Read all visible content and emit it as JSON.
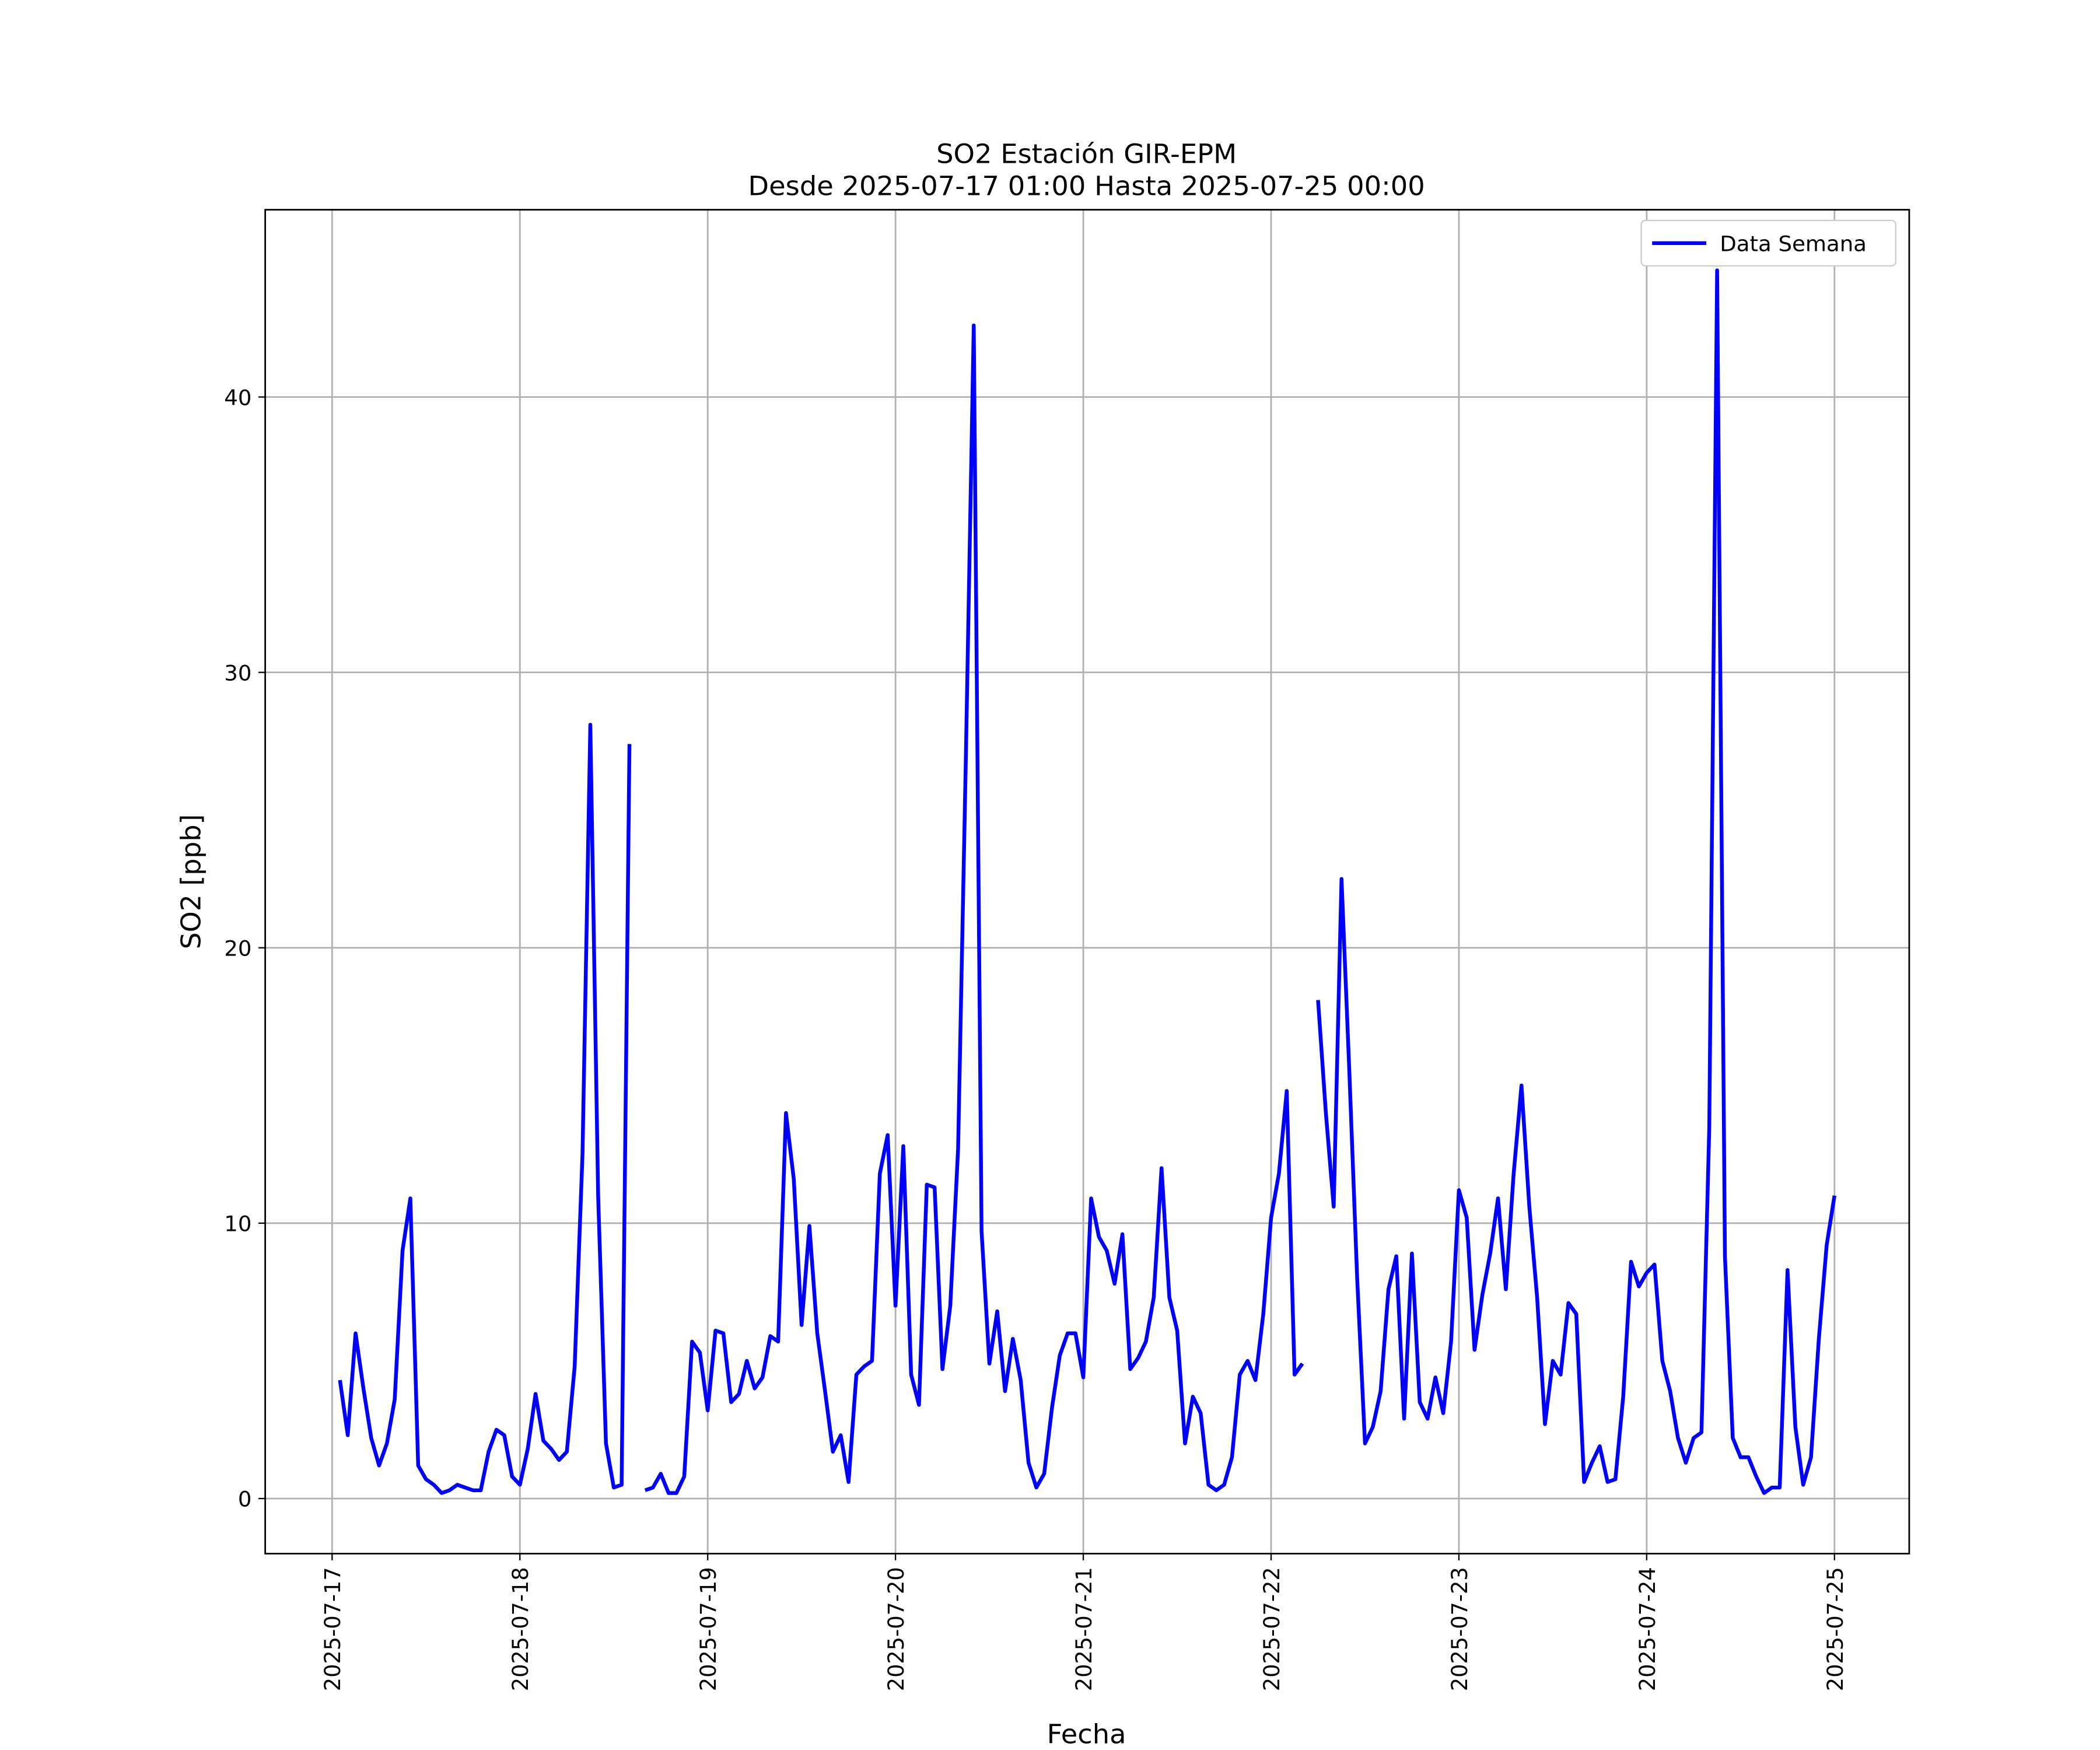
{
  "chart_data": {
    "type": "line",
    "title": "SO2 Estación GIR-EPM",
    "subtitle": "Desde 2025-07-17 01:00 Hasta 2025-07-25 00:00",
    "xlabel": "Fecha",
    "ylabel": "SO2 [ppb]",
    "legend": "upper right",
    "grid": true,
    "x": [
      "2025-07-17 01:00",
      "2025-07-17 02:00",
      "2025-07-17 03:00",
      "2025-07-17 04:00",
      "2025-07-17 05:00",
      "2025-07-17 06:00",
      "2025-07-17 07:00",
      "2025-07-17 08:00",
      "2025-07-17 09:00",
      "2025-07-17 10:00",
      "2025-07-17 11:00",
      "2025-07-17 12:00",
      "2025-07-17 13:00",
      "2025-07-17 14:00",
      "2025-07-17 15:00",
      "2025-07-17 16:00",
      "2025-07-17 17:00",
      "2025-07-17 18:00",
      "2025-07-17 19:00",
      "2025-07-17 20:00",
      "2025-07-17 21:00",
      "2025-07-17 22:00",
      "2025-07-17 23:00",
      "2025-07-18 00:00",
      "2025-07-18 01:00",
      "2025-07-18 02:00",
      "2025-07-18 03:00",
      "2025-07-18 04:00",
      "2025-07-18 05:00",
      "2025-07-18 06:00",
      "2025-07-18 07:00",
      "2025-07-18 08:00",
      "2025-07-18 09:00",
      "2025-07-18 10:00",
      "2025-07-18 11:00",
      "2025-07-18 12:00",
      "2025-07-18 13:00",
      "2025-07-18 14:00",
      "2025-07-18 15:00",
      "2025-07-18 16:00",
      "2025-07-18 17:00",
      "2025-07-18 18:00",
      "2025-07-18 19:00",
      "2025-07-18 20:00",
      "2025-07-18 21:00",
      "2025-07-18 22:00",
      "2025-07-18 23:00",
      "2025-07-19 00:00",
      "2025-07-19 01:00",
      "2025-07-19 02:00",
      "2025-07-19 03:00",
      "2025-07-19 04:00",
      "2025-07-19 05:00",
      "2025-07-19 06:00",
      "2025-07-19 07:00",
      "2025-07-19 08:00",
      "2025-07-19 09:00",
      "2025-07-19 10:00",
      "2025-07-19 11:00",
      "2025-07-19 12:00",
      "2025-07-19 13:00",
      "2025-07-19 14:00",
      "2025-07-19 15:00",
      "2025-07-19 16:00",
      "2025-07-19 17:00",
      "2025-07-19 18:00",
      "2025-07-19 19:00",
      "2025-07-19 20:00",
      "2025-07-19 21:00",
      "2025-07-19 22:00",
      "2025-07-19 23:00",
      "2025-07-20 00:00",
      "2025-07-20 01:00",
      "2025-07-20 02:00",
      "2025-07-20 03:00",
      "2025-07-20 04:00",
      "2025-07-20 05:00",
      "2025-07-20 06:00",
      "2025-07-20 07:00",
      "2025-07-20 08:00",
      "2025-07-20 09:00",
      "2025-07-20 10:00",
      "2025-07-20 11:00",
      "2025-07-20 12:00",
      "2025-07-20 13:00",
      "2025-07-20 14:00",
      "2025-07-20 15:00",
      "2025-07-20 16:00",
      "2025-07-20 17:00",
      "2025-07-20 18:00",
      "2025-07-20 19:00",
      "2025-07-20 20:00",
      "2025-07-20 21:00",
      "2025-07-20 22:00",
      "2025-07-20 23:00",
      "2025-07-21 00:00",
      "2025-07-21 01:00",
      "2025-07-21 02:00",
      "2025-07-21 03:00",
      "2025-07-21 04:00",
      "2025-07-21 05:00",
      "2025-07-21 06:00",
      "2025-07-21 07:00",
      "2025-07-21 08:00",
      "2025-07-21 09:00",
      "2025-07-21 10:00",
      "2025-07-21 11:00",
      "2025-07-21 12:00",
      "2025-07-21 13:00",
      "2025-07-21 14:00",
      "2025-07-21 15:00",
      "2025-07-21 16:00",
      "2025-07-21 17:00",
      "2025-07-21 18:00",
      "2025-07-21 19:00",
      "2025-07-21 20:00",
      "2025-07-21 21:00",
      "2025-07-21 22:00",
      "2025-07-21 23:00",
      "2025-07-22 00:00",
      "2025-07-22 01:00",
      "2025-07-22 02:00",
      "2025-07-22 03:00",
      "2025-07-22 04:00",
      "2025-07-22 05:00",
      "2025-07-22 06:00",
      "2025-07-22 07:00",
      "2025-07-22 08:00",
      "2025-07-22 09:00",
      "2025-07-22 10:00",
      "2025-07-22 11:00",
      "2025-07-22 12:00",
      "2025-07-22 13:00",
      "2025-07-22 14:00",
      "2025-07-22 15:00",
      "2025-07-22 16:00",
      "2025-07-22 17:00",
      "2025-07-22 18:00",
      "2025-07-22 19:00",
      "2025-07-22 20:00",
      "2025-07-22 21:00",
      "2025-07-22 22:00",
      "2025-07-22 23:00",
      "2025-07-23 00:00",
      "2025-07-23 01:00",
      "2025-07-23 02:00",
      "2025-07-23 03:00",
      "2025-07-23 04:00",
      "2025-07-23 05:00",
      "2025-07-23 06:00",
      "2025-07-23 07:00",
      "2025-07-23 08:00",
      "2025-07-23 09:00",
      "2025-07-23 10:00",
      "2025-07-23 11:00",
      "2025-07-23 12:00",
      "2025-07-23 13:00",
      "2025-07-23 14:00",
      "2025-07-23 15:00",
      "2025-07-23 16:00",
      "2025-07-23 17:00",
      "2025-07-23 18:00",
      "2025-07-23 19:00",
      "2025-07-23 20:00",
      "2025-07-23 21:00",
      "2025-07-23 22:00",
      "2025-07-23 23:00",
      "2025-07-24 00:00",
      "2025-07-24 01:00",
      "2025-07-24 02:00",
      "2025-07-24 03:00",
      "2025-07-24 04:00",
      "2025-07-24 05:00",
      "2025-07-24 06:00",
      "2025-07-24 07:00",
      "2025-07-24 08:00",
      "2025-07-24 09:00",
      "2025-07-24 10:00",
      "2025-07-24 11:00",
      "2025-07-24 12:00",
      "2025-07-24 13:00",
      "2025-07-24 14:00",
      "2025-07-24 15:00",
      "2025-07-24 16:00",
      "2025-07-24 17:00",
      "2025-07-24 18:00",
      "2025-07-24 19:00",
      "2025-07-24 20:00",
      "2025-07-24 21:00",
      "2025-07-24 22:00",
      "2025-07-24 23:00",
      "2025-07-25 00:00"
    ],
    "series": [
      {
        "name": "Data Semana",
        "color": "#0000ff",
        "values": [
          4.3,
          2.3,
          6.0,
          4.0,
          2.2,
          1.2,
          2.0,
          3.6,
          9.0,
          10.9,
          1.2,
          0.7,
          0.5,
          0.2,
          0.3,
          0.5,
          0.4,
          0.3,
          0.3,
          1.7,
          2.5,
          2.3,
          0.8,
          0.5,
          1.8,
          3.8,
          2.1,
          1.8,
          1.4,
          1.7,
          4.8,
          12.5,
          28.1,
          11.0,
          2.0,
          0.4,
          0.5,
          27.4,
          null,
          0.3,
          0.4,
          0.9,
          0.2,
          0.2,
          0.8,
          5.7,
          5.3,
          3.2,
          6.1,
          6.0,
          3.5,
          3.8,
          5.0,
          4.0,
          4.4,
          5.9,
          5.7,
          14.0,
          11.6,
          6.3,
          9.9,
          6.0,
          3.9,
          1.7,
          2.3,
          0.6,
          4.5,
          4.8,
          5.0,
          11.8,
          13.2,
          7.0,
          12.8,
          4.5,
          3.4,
          11.4,
          11.3,
          4.7,
          7.0,
          12.7,
          27.0,
          42.6,
          9.7,
          4.9,
          6.8,
          3.9,
          5.8,
          4.3,
          1.3,
          0.4,
          0.9,
          3.3,
          5.2,
          6.0,
          6.0,
          4.4,
          10.9,
          9.5,
          9.0,
          7.8,
          9.6,
          4.7,
          5.1,
          5.7,
          7.3,
          12.0,
          7.3,
          6.1,
          2.0,
          3.7,
          3.1,
          0.5,
          0.3,
          0.5,
          1.5,
          4.5,
          5.0,
          4.3,
          6.7,
          10.2,
          11.8,
          14.8,
          4.5,
          4.9,
          null,
          18.1,
          14.0,
          10.6,
          22.5,
          15.5,
          8.0,
          2.0,
          2.6,
          3.9,
          7.6,
          8.8,
          2.9,
          8.9,
          3.5,
          2.9,
          4.4,
          3.1,
          5.7,
          11.2,
          10.2,
          5.4,
          7.4,
          8.9,
          10.9,
          7.6,
          11.8,
          15.0,
          10.6,
          7.3,
          2.7,
          5.0,
          4.5,
          7.1,
          6.7,
          0.6,
          1.3,
          1.9,
          0.6,
          0.7,
          3.7,
          8.6,
          7.7,
          8.2,
          8.5,
          5.0,
          3.9,
          2.2,
          1.3,
          2.2,
          2.4,
          13.5,
          44.6,
          8.8,
          2.2,
          1.5,
          1.5,
          0.8,
          0.2,
          0.4,
          0.4,
          8.3,
          2.6,
          0.5,
          1.5,
          5.8,
          9.2,
          11.0
        ]
      }
    ],
    "xlim": [
      "2025-07-16 15:27",
      "2025-07-25 09:33"
    ],
    "xticks": [
      "2025-07-17",
      "2025-07-18",
      "2025-07-19",
      "2025-07-20",
      "2025-07-21",
      "2025-07-22",
      "2025-07-23",
      "2025-07-24",
      "2025-07-25"
    ],
    "ylim": [
      -2.0,
      46.8
    ],
    "yticks": [
      0,
      10,
      20,
      30,
      40
    ]
  }
}
